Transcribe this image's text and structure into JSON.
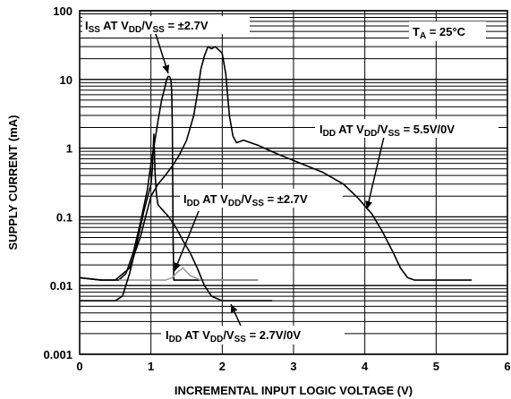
{
  "chart_data": {
    "type": "line",
    "title": "",
    "xlabel": "INCREMENTAL INPUT LOGIC VOLTAGE (V)",
    "ylabel": "SUPPLY CURRENT (mA)",
    "xlim": [
      0,
      6
    ],
    "ylim": [
      0.001,
      100
    ],
    "yscale": "log",
    "grid": true,
    "x_ticks": [
      "0",
      "1",
      "2",
      "3",
      "4",
      "5",
      "6"
    ],
    "y_ticks": [
      "0.001",
      "0.01",
      "0.1",
      "1",
      "10",
      "100"
    ],
    "condition": {
      "pre": "T",
      "sub": "A",
      "post": " = 25°C"
    },
    "annotations": [
      {
        "parts": [
          {
            "t": "I"
          },
          {
            "t": "SS",
            "sub": true
          },
          {
            "t": " AT V"
          },
          {
            "t": "DD",
            "sub": true
          },
          {
            "t": "/V"
          },
          {
            "t": "SS",
            "sub": true
          },
          {
            "t": " = ±2.7V"
          }
        ]
      },
      {
        "parts": [
          {
            "t": "I"
          },
          {
            "t": "DD",
            "sub": true
          },
          {
            "t": " AT V"
          },
          {
            "t": "DD",
            "sub": true
          },
          {
            "t": "/V"
          },
          {
            "t": "SS",
            "sub": true
          },
          {
            "t": " = 5.5V/0V"
          }
        ]
      },
      {
        "parts": [
          {
            "t": "I"
          },
          {
            "t": "DD",
            "sub": true
          },
          {
            "t": " AT V"
          },
          {
            "t": "DD",
            "sub": true
          },
          {
            "t": "/V"
          },
          {
            "t": "SS",
            "sub": true
          },
          {
            "t": " = ±2.7V"
          }
        ]
      },
      {
        "parts": [
          {
            "t": "I"
          },
          {
            "t": "DD",
            "sub": true
          },
          {
            "t": " AT V"
          },
          {
            "t": "DD",
            "sub": true
          },
          {
            "t": "/V"
          },
          {
            "t": "SS",
            "sub": true
          },
          {
            "t": " = 2.7V/0V"
          }
        ]
      }
    ],
    "series": [
      {
        "color": "#000000",
        "x": [
          0,
          0.3,
          0.5,
          0.7,
          0.85,
          1.0,
          1.1,
          1.2,
          1.3,
          1.4,
          1.5,
          1.6,
          1.65,
          1.7,
          1.75,
          1.8,
          1.85,
          1.9,
          1.95,
          2.0,
          2.05,
          2.1,
          2.15,
          2.2,
          2.3,
          2.5,
          2.8,
          3.1,
          3.4,
          3.7,
          3.9,
          4.1,
          4.25,
          4.4,
          4.5,
          4.6,
          4.7,
          5.0,
          5.5
        ],
        "y": [
          0.013,
          0.012,
          0.012,
          0.018,
          0.05,
          0.2,
          0.3,
          0.4,
          0.55,
          0.8,
          1.3,
          3,
          6,
          14,
          22,
          30,
          28,
          30,
          27,
          24,
          12,
          3,
          1.5,
          1.2,
          1.3,
          1.1,
          0.8,
          0.6,
          0.45,
          0.3,
          0.19,
          0.11,
          0.06,
          0.03,
          0.018,
          0.013,
          0.012,
          0.012,
          0.012
        ]
      },
      {
        "color": "#000000",
        "x": [
          0,
          0.3,
          0.5,
          0.55,
          0.65,
          0.75,
          0.85,
          0.95,
          1.0,
          1.05,
          1.1,
          1.15,
          1.2,
          1.22,
          1.24,
          1.26,
          1.28,
          1.29,
          1.3,
          1.31,
          1.32,
          2.5
        ],
        "y": [
          0.013,
          0.012,
          0.012,
          0.012,
          0.015,
          0.03,
          0.08,
          0.25,
          0.6,
          1.2,
          2.5,
          5,
          8,
          10,
          11,
          11,
          10,
          7,
          2,
          0.05,
          0.012,
          0.012
        ]
      },
      {
        "color": "#999999",
        "x": [
          0.55,
          1.0,
          1.2,
          1.3,
          1.38,
          1.45,
          1.55,
          1.7,
          2.0,
          2.5
        ],
        "y": [
          0.012,
          0.012,
          0.012,
          0.013,
          0.016,
          0.018,
          0.014,
          0.012,
          0.012,
          0.012
        ]
      },
      {
        "color": "#000000",
        "x": [
          0,
          0.3,
          0.5,
          0.6,
          0.7,
          0.8,
          0.9,
          1.0,
          1.02,
          1.04,
          1.06,
          1.08,
          1.1,
          1.15,
          1.25,
          1.35,
          1.45,
          1.55,
          1.65,
          1.75,
          1.85,
          2.0,
          2.3,
          2.7
        ],
        "y": [
          0.006,
          0.006,
          0.006,
          0.007,
          0.015,
          0.04,
          0.12,
          0.3,
          0.5,
          1.6,
          0.4,
          0.2,
          0.15,
          0.13,
          0.1,
          0.07,
          0.045,
          0.03,
          0.018,
          0.01,
          0.007,
          0.006,
          0.006,
          0.006
        ]
      }
    ]
  }
}
